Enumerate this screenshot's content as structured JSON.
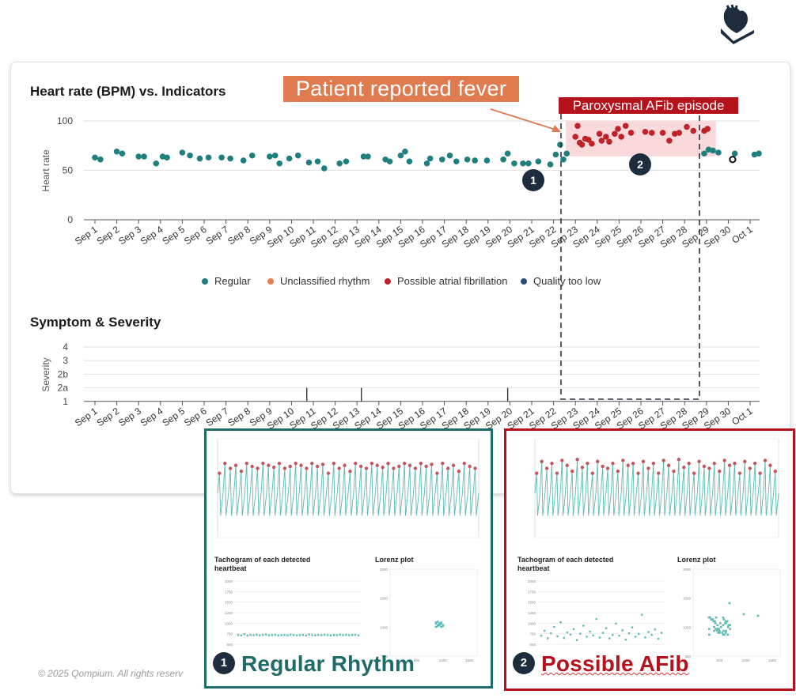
{
  "logo": {
    "icon": "heart-hand-icon",
    "color": "#1e2d3d"
  },
  "colors": {
    "regular": "#1f7f7f",
    "unclassified": "#e77b52",
    "afib": "#c0222a",
    "low_quality": "#2a4f7f",
    "afib_band": "#f9d9dc"
  },
  "callouts": {
    "fever": "Patient reported fever",
    "afib_episode": "Paroxysmal AFib episode",
    "badge1": "1",
    "badge2": "2"
  },
  "panels": {
    "regular": {
      "badge": "1",
      "label": "Regular Rhythm",
      "tachogram_title": "Tachogram of each detected heartbeat",
      "lorenz_title": "Lorenz plot"
    },
    "afib": {
      "badge": "2",
      "label": "Possible AFib",
      "tachogram_title": "Tachogram of each detected heartbeat",
      "lorenz_title": "Lorenz plot"
    }
  },
  "copyright": "© 2025 Qompium. All rights reserv",
  "chart_data": [
    {
      "type": "scatter",
      "title": "Heart rate (BPM) vs. Indicators",
      "ylabel": "Heart rate",
      "xlabel": "",
      "ylim": [
        0,
        100
      ],
      "y_ticks": [
        "0",
        "50",
        "100"
      ],
      "categories": [
        "Sep 1",
        "Sep 2",
        "Sep 3",
        "Sep 4",
        "Sep 5",
        "Sep 6",
        "Sep 7",
        "Sep 8",
        "Sep 9",
        "Sep 10",
        "Sep 11",
        "Sep 12",
        "Sep 13",
        "Sep 14",
        "Sep 15",
        "Sep 16",
        "Sep 17",
        "Sep 18",
        "Sep 19",
        "Sep 20",
        "Sep 21",
        "Sep 22",
        "Sep 23",
        "Sep 24",
        "Sep 25",
        "Sep 26",
        "Sep 27",
        "Sep 28",
        "Sep 29",
        "Sep 30",
        "Oct 1"
      ],
      "legend": [
        "Regular",
        "Unclassified rhythm",
        "Possible atrial fibrillation",
        "Quality too low"
      ],
      "legend_position": "bottom",
      "grid": true,
      "series": [
        {
          "name": "Regular",
          "points": [
            [
              0.0,
              63
            ],
            [
              0.25,
              61
            ],
            [
              1.0,
              69
            ],
            [
              1.25,
              67
            ],
            [
              2.0,
              64
            ],
            [
              2.25,
              64
            ],
            [
              2.8,
              57
            ],
            [
              3.1,
              64
            ],
            [
              3.3,
              63
            ],
            [
              4.0,
              68
            ],
            [
              4.35,
              65
            ],
            [
              4.8,
              62
            ],
            [
              5.2,
              63
            ],
            [
              5.8,
              63
            ],
            [
              6.2,
              62
            ],
            [
              6.8,
              60
            ],
            [
              7.2,
              65
            ],
            [
              8.0,
              64
            ],
            [
              8.25,
              65
            ],
            [
              8.45,
              57
            ],
            [
              8.9,
              62
            ],
            [
              9.3,
              65
            ],
            [
              9.8,
              58
            ],
            [
              10.2,
              59
            ],
            [
              10.5,
              52
            ],
            [
              11.2,
              57
            ],
            [
              11.5,
              59
            ],
            [
              12.3,
              64
            ],
            [
              12.5,
              64
            ],
            [
              13.3,
              61
            ],
            [
              13.5,
              59
            ],
            [
              14.0,
              65
            ],
            [
              14.2,
              69
            ],
            [
              14.4,
              59
            ],
            [
              15.2,
              57
            ],
            [
              15.35,
              62
            ],
            [
              15.9,
              61
            ],
            [
              16.25,
              65
            ],
            [
              16.55,
              59
            ],
            [
              17.05,
              61
            ],
            [
              17.4,
              60
            ],
            [
              17.95,
              60
            ],
            [
              18.7,
              61
            ],
            [
              18.9,
              67
            ],
            [
              19.2,
              57
            ],
            [
              19.6,
              57
            ],
            [
              19.85,
              57
            ],
            [
              20.3,
              59
            ],
            [
              20.85,
              56
            ],
            [
              21.1,
              66
            ],
            [
              21.3,
              76
            ],
            [
              21.45,
              61
            ],
            [
              21.6,
              67
            ],
            [
              27.9,
              67
            ],
            [
              28.1,
              71
            ],
            [
              28.3,
              70
            ],
            [
              28.55,
              68
            ],
            [
              29.3,
              67
            ],
            [
              30.2,
              66
            ],
            [
              30.4,
              67
            ]
          ]
        },
        {
          "name": "Possible atrial fibrillation",
          "points": [
            [
              22.0,
              84
            ],
            [
              22.1,
              95
            ],
            [
              22.2,
              78
            ],
            [
              22.3,
              76
            ],
            [
              22.45,
              82
            ],
            [
              22.6,
              81
            ],
            [
              22.75,
              77
            ],
            [
              23.1,
              87
            ],
            [
              23.2,
              80
            ],
            [
              23.4,
              84
            ],
            [
              23.55,
              79
            ],
            [
              23.8,
              87
            ],
            [
              23.95,
              92
            ],
            [
              24.1,
              84
            ],
            [
              24.3,
              95
            ],
            [
              24.55,
              88
            ],
            [
              25.2,
              89
            ],
            [
              25.5,
              88
            ],
            [
              26.0,
              88
            ],
            [
              26.3,
              80
            ],
            [
              26.55,
              87
            ],
            [
              26.75,
              88
            ],
            [
              27.1,
              94
            ],
            [
              27.4,
              90
            ],
            [
              27.9,
              90
            ],
            [
              28.05,
              92
            ]
          ]
        },
        {
          "name": "Quality too low",
          "points": [
            [
              29.2,
              61
            ]
          ]
        }
      ]
    },
    {
      "type": "scatter",
      "title": "Symptom & Severity",
      "ylabel": "Severity",
      "xlabel": "",
      "y_ticks": [
        "1",
        "2a",
        "2b",
        "3",
        "4"
      ],
      "categories": [
        "Sep 1",
        "Sep 2",
        "Sep 3",
        "Sep 4",
        "Sep 5",
        "Sep 6",
        "Sep 7",
        "Sep 8",
        "Sep 9",
        "Sep 10",
        "Sep 11",
        "Sep 12",
        "Sep 13",
        "Sep 14",
        "Sep 15",
        "Sep 16",
        "Sep 17",
        "Sep 18",
        "Sep 19",
        "Sep 20",
        "Sep 21",
        "Sep 22",
        "Sep 23",
        "Sep 24",
        "Sep 25",
        "Sep 26",
        "Sep 27",
        "Sep 28",
        "Sep 29",
        "Sep 30",
        "Oct 1"
      ],
      "grid": true,
      "series": [
        {
          "name": "Symptoms",
          "points": [
            [
              9.7,
              "2a"
            ],
            [
              12.2,
              "2a"
            ],
            [
              18.9,
              "2a"
            ]
          ]
        }
      ]
    },
    {
      "type": "line",
      "title": "",
      "panel": "regular-ecg",
      "series": [
        {
          "name": "",
          "values": [
            0.5,
            0.6,
            0.55,
            0.58,
            0.52,
            0.6,
            0.57,
            0.55,
            0.6,
            0.58,
            0.56,
            0.6,
            0.55,
            0.57,
            0.6,
            0.58,
            0.55,
            0.6,
            0.57,
            0.59
          ]
        }
      ]
    },
    {
      "type": "scatter",
      "title": "",
      "panel": "regular-tachogram",
      "x_ticks": [],
      "y_ticks": [
        "2000",
        "1750",
        "1500",
        "1250",
        "1000",
        "750",
        "500"
      ],
      "series": [
        {
          "name": "",
          "values": [
            720,
            710,
            735,
            705,
            720,
            715,
            725,
            710,
            720,
            730,
            712,
            718,
            722,
            708,
            716,
            720,
            714,
            725,
            719,
            711,
            716,
            722,
            709,
            728,
            717,
            712,
            721,
            715,
            724,
            718,
            710,
            720,
            713,
            727,
            716,
            721,
            714,
            719,
            723,
            712
          ]
        }
      ]
    },
    {
      "type": "scatter",
      "title": "",
      "panel": "regular-lorenz",
      "y_ticks": [
        "2000",
        "1500",
        "1000",
        "500"
      ],
      "x_ticks": [
        "500",
        "1000",
        "1500"
      ]
    },
    {
      "type": "line",
      "title": "",
      "panel": "afib-ecg",
      "series": [
        {
          "name": "",
          "values": [
            0.5,
            0.62,
            0.55,
            0.6,
            0.5,
            0.63,
            0.58,
            0.52,
            0.64,
            0.56,
            0.6,
            0.5,
            0.62,
            0.57,
            0.55,
            0.6,
            0.52,
            0.63,
            0.58,
            0.6
          ]
        }
      ]
    },
    {
      "type": "scatter",
      "title": "",
      "panel": "afib-tachogram",
      "y_ticks": [
        "2000",
        "1750",
        "1500",
        "1250",
        "1000",
        "750",
        "500"
      ],
      "series": [
        {
          "name": "",
          "values": [
            700,
            820,
            640,
            760,
            910,
            690,
            1020,
            650,
            780,
            730,
            860,
            600,
            750,
            940,
            680,
            800,
            710,
            1100,
            660,
            770,
            880,
            640,
            720,
            990,
            700,
            830,
            610,
            760,
            900,
            680,
            745,
            1200,
            660,
            790,
            720,
            850,
            630,
            770
          ]
        }
      ]
    },
    {
      "type": "scatter",
      "title": "",
      "panel": "afib-lorenz",
      "y_ticks": [
        "2000",
        "1500",
        "1000",
        "500"
      ],
      "x_ticks": [
        "500",
        "1000",
        "1500"
      ]
    }
  ]
}
